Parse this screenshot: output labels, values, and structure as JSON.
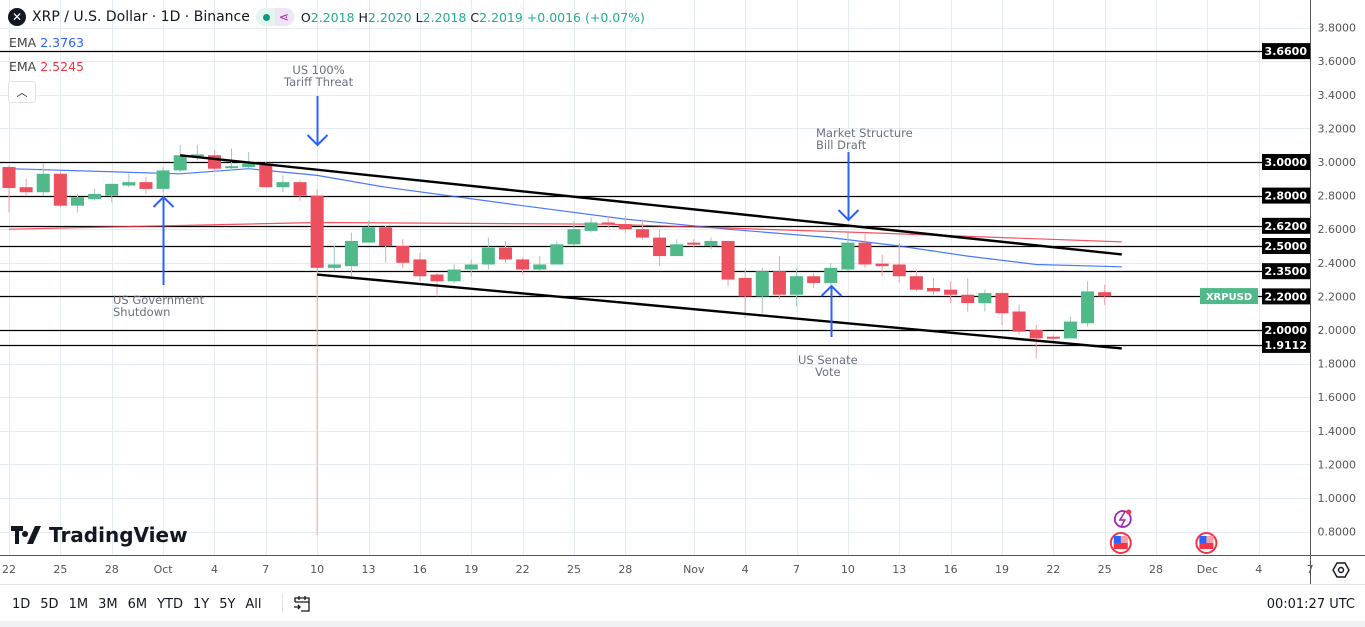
{
  "header": {
    "symbol_title": "XRP / U.S. Dollar · 1D · Binance",
    "symbol_icon": "xrp-logo-icon",
    "open_label": "O",
    "open": "2.2018",
    "high_label": "H",
    "high": "2.2020",
    "low_label": "L",
    "low": "2.2018",
    "close_label": "C",
    "close": "2.2019",
    "change": "+0.0016 (+0.07%)"
  },
  "indicators": [
    {
      "name": "EMA",
      "value": "2.3763",
      "color": "#2962ff"
    },
    {
      "name": "EMA",
      "value": "2.5245",
      "color": "#f23645"
    }
  ],
  "colors": {
    "up": "#4fb98a",
    "down": "#ec4f5e",
    "up_wick": "#9fc6c3",
    "down_wick": "#f5a0a8",
    "grid": "#e4ebf2",
    "arrow": "#2962ff",
    "last_price_bg": "#4fb98a"
  },
  "annotations": [
    {
      "id": "shutdown",
      "lines": [
        "US Government",
        "Shutdown"
      ],
      "arrow": "up",
      "date": "Oct 1"
    },
    {
      "id": "tariff",
      "lines": [
        "US 100%",
        "Tariff Threat"
      ],
      "arrow": "down",
      "date": "Oct 10"
    },
    {
      "id": "market-structure",
      "lines": [
        "Market Structure",
        "Bill Draft"
      ],
      "arrow": "down",
      "date": "Nov 10"
    },
    {
      "id": "senate",
      "lines": [
        "US Senate",
        "Vote"
      ],
      "arrow": "up",
      "date": "Nov 9"
    }
  ],
  "chart_data": {
    "type": "candlestick",
    "title": "XRP / U.S. Dollar · 1D · Binance",
    "ylim": [
      0.7,
      3.95
    ],
    "y_ticks": [
      "3.8000",
      "3.6000",
      "3.4000",
      "3.2000",
      "3.0000",
      "2.8000",
      "2.6000",
      "2.4000",
      "2.2000",
      "2.0000",
      "1.8000",
      "1.6000",
      "1.4000",
      "1.2000",
      "1.0000",
      "0.8000"
    ],
    "x_ticks": [
      {
        "label": "22",
        "date": "Sep 22"
      },
      {
        "label": "25",
        "date": "Sep 25"
      },
      {
        "label": "28",
        "date": "Sep 28"
      },
      {
        "label": "Oct",
        "date": "Oct 1"
      },
      {
        "label": "4",
        "date": "Oct 4"
      },
      {
        "label": "7",
        "date": "Oct 7"
      },
      {
        "label": "10",
        "date": "Oct 10"
      },
      {
        "label": "13",
        "date": "Oct 13"
      },
      {
        "label": "16",
        "date": "Oct 16"
      },
      {
        "label": "19",
        "date": "Oct 19"
      },
      {
        "label": "22",
        "date": "Oct 22"
      },
      {
        "label": "25",
        "date": "Oct 25"
      },
      {
        "label": "28",
        "date": "Oct 28"
      },
      {
        "label": "Nov",
        "date": "Nov 1"
      },
      {
        "label": "4",
        "date": "Nov 4"
      },
      {
        "label": "7",
        "date": "Nov 7"
      },
      {
        "label": "10",
        "date": "Nov 10"
      },
      {
        "label": "13",
        "date": "Nov 13"
      },
      {
        "label": "16",
        "date": "Nov 16"
      },
      {
        "label": "19",
        "date": "Nov 19"
      },
      {
        "label": "22",
        "date": "Nov 22"
      },
      {
        "label": "25",
        "date": "Nov 25"
      },
      {
        "label": "28",
        "date": "Nov 28"
      },
      {
        "label": "Dec",
        "date": "Dec 1"
      },
      {
        "label": "4",
        "date": "Dec 4"
      },
      {
        "label": "7",
        "date": "Dec 7"
      }
    ],
    "candles_columns": [
      "date",
      "open",
      "high",
      "low",
      "close"
    ],
    "candles": [
      [
        "Sep 22",
        2.97,
        2.98,
        2.7,
        2.845
      ],
      [
        "Sep 23",
        2.85,
        2.9,
        2.8,
        2.82
      ],
      [
        "Sep 24",
        2.82,
        2.99,
        2.8,
        2.93
      ],
      [
        "Sep 25",
        2.93,
        2.95,
        2.73,
        2.74
      ],
      [
        "Sep 26",
        2.74,
        2.81,
        2.7,
        2.79
      ],
      [
        "Sep 27",
        2.78,
        2.84,
        2.77,
        2.81
      ],
      [
        "Sep 28",
        2.8,
        2.87,
        2.76,
        2.87
      ],
      [
        "Sep 29",
        2.86,
        2.93,
        2.85,
        2.88
      ],
      [
        "Sep 30",
        2.88,
        2.91,
        2.81,
        2.84
      ],
      [
        "Oct 1",
        2.84,
        2.97,
        2.82,
        2.95
      ],
      [
        "Oct 2",
        2.95,
        3.1,
        2.94,
        3.04
      ],
      [
        "Oct 3",
        3.04,
        3.1,
        3.01,
        3.045
      ],
      [
        "Oct 4",
        3.04,
        3.07,
        2.94,
        2.96
      ],
      [
        "Oct 5",
        2.97,
        3.08,
        2.95,
        2.975
      ],
      [
        "Oct 6",
        2.97,
        3.06,
        2.96,
        2.99
      ],
      [
        "Oct 7",
        2.99,
        3.0,
        2.85,
        2.85
      ],
      [
        "Oct 8",
        2.85,
        2.92,
        2.82,
        2.88
      ],
      [
        "Oct 9",
        2.88,
        2.89,
        2.77,
        2.8
      ],
      [
        "Oct 10",
        2.8,
        2.84,
        0.78,
        2.37
      ],
      [
        "Oct 11",
        2.37,
        2.5,
        2.35,
        2.39
      ],
      [
        "Oct 12",
        2.38,
        2.58,
        2.32,
        2.53
      ],
      [
        "Oct 13",
        2.52,
        2.65,
        2.52,
        2.61
      ],
      [
        "Oct 14",
        2.61,
        2.62,
        2.4,
        2.5
      ],
      [
        "Oct 15",
        2.5,
        2.54,
        2.37,
        2.4
      ],
      [
        "Oct 16",
        2.42,
        2.46,
        2.29,
        2.32
      ],
      [
        "Oct 17",
        2.33,
        2.34,
        2.2,
        2.29
      ],
      [
        "Oct 18",
        2.29,
        2.39,
        2.28,
        2.36
      ],
      [
        "Oct 19",
        2.36,
        2.42,
        2.32,
        2.39
      ],
      [
        "Oct 20",
        2.39,
        2.55,
        2.36,
        2.49
      ],
      [
        "Oct 21",
        2.49,
        2.53,
        2.4,
        2.42
      ],
      [
        "Oct 22",
        2.42,
        2.43,
        2.33,
        2.36
      ],
      [
        "Oct 23",
        2.36,
        2.44,
        2.35,
        2.39
      ],
      [
        "Oct 24",
        2.39,
        2.53,
        2.39,
        2.51
      ],
      [
        "Oct 25",
        2.51,
        2.65,
        2.5,
        2.6
      ],
      [
        "Oct 26",
        2.59,
        2.67,
        2.58,
        2.64
      ],
      [
        "Oct 27",
        2.64,
        2.68,
        2.61,
        2.63
      ],
      [
        "Oct 28",
        2.63,
        2.68,
        2.58,
        2.6
      ],
      [
        "Oct 29",
        2.6,
        2.66,
        2.54,
        2.55
      ],
      [
        "Oct 30",
        2.55,
        2.6,
        2.38,
        2.44
      ],
      [
        "Oct 31",
        2.44,
        2.54,
        2.44,
        2.51
      ],
      [
        "Nov 1",
        2.52,
        2.54,
        2.49,
        2.51
      ],
      [
        "Nov 2",
        2.5,
        2.55,
        2.48,
        2.53
      ],
      [
        "Nov 3",
        2.53,
        2.53,
        2.26,
        2.3
      ],
      [
        "Nov 4",
        2.31,
        2.36,
        2.07,
        2.2
      ],
      [
        "Nov 5",
        2.2,
        2.37,
        2.1,
        2.35
      ],
      [
        "Nov 6",
        2.35,
        2.44,
        2.18,
        2.21
      ],
      [
        "Nov 7",
        2.21,
        2.37,
        2.14,
        2.32
      ],
      [
        "Nov 8",
        2.32,
        2.34,
        2.25,
        2.28
      ],
      [
        "Nov 9",
        2.28,
        2.4,
        2.27,
        2.37
      ],
      [
        "Nov 10",
        2.36,
        2.58,
        2.35,
        2.52
      ],
      [
        "Nov 11",
        2.52,
        2.57,
        2.37,
        2.39
      ],
      [
        "Nov 12",
        2.395,
        2.45,
        2.32,
        2.38
      ],
      [
        "Nov 13",
        2.39,
        2.52,
        2.28,
        2.32
      ],
      [
        "Nov 14",
        2.32,
        2.36,
        2.23,
        2.24
      ],
      [
        "Nov 15",
        2.25,
        2.31,
        2.21,
        2.23
      ],
      [
        "Nov 16",
        2.24,
        2.29,
        2.16,
        2.21
      ],
      [
        "Nov 17",
        2.21,
        2.31,
        2.11,
        2.16
      ],
      [
        "Nov 18",
        2.16,
        2.24,
        2.11,
        2.22
      ],
      [
        "Nov 19",
        2.22,
        2.23,
        2.03,
        2.1
      ],
      [
        "Nov 20",
        2.11,
        2.15,
        1.97,
        1.99
      ],
      [
        "Nov 21",
        2.0,
        2.03,
        1.83,
        1.95
      ],
      [
        "Nov 22",
        1.96,
        1.97,
        1.92,
        1.95
      ],
      [
        "Nov 23",
        1.95,
        2.08,
        1.95,
        2.05
      ],
      [
        "Nov 24",
        2.04,
        2.29,
        2.02,
        2.23
      ],
      [
        "Nov 25",
        2.225,
        2.27,
        2.15,
        2.2
      ]
    ],
    "ema_series": [
      {
        "name": "EMA",
        "color": "#2962ff",
        "points": [
          [
            "Sep 22",
            2.96
          ],
          [
            "Oct 2",
            2.93
          ],
          [
            "Oct 6",
            2.96
          ],
          [
            "Oct 10",
            2.92
          ],
          [
            "Oct 14",
            2.85
          ],
          [
            "Oct 22",
            2.74
          ],
          [
            "Oct 28",
            2.66
          ],
          [
            "Nov 3",
            2.6
          ],
          [
            "Nov 9",
            2.55
          ],
          [
            "Nov 13",
            2.5
          ],
          [
            "Nov 17",
            2.44
          ],
          [
            "Nov 21",
            2.39
          ],
          [
            "Nov 26",
            2.3763
          ]
        ]
      },
      {
        "name": "EMA",
        "color": "#f23645",
        "points": [
          [
            "Sep 22",
            2.6
          ],
          [
            "Oct 10",
            2.64
          ],
          [
            "Oct 27",
            2.63
          ],
          [
            "Nov 11",
            2.58
          ],
          [
            "Nov 26",
            2.5245
          ]
        ]
      }
    ],
    "horizontal_levels": [
      "3.6600",
      "3.0000",
      "2.8000",
      "2.6200",
      "2.5000",
      "2.3500",
      "2.2000",
      "2.0000",
      "1.9112"
    ],
    "trend_lines": [
      {
        "from": [
          "Oct 2",
          3.04
        ],
        "to": [
          "Nov 26",
          2.45
        ]
      },
      {
        "from": [
          "Oct 10",
          2.33
        ],
        "to": [
          "Nov 26",
          1.89
        ]
      }
    ],
    "last_price_label": "XRPUSD",
    "last_price": 2.2019,
    "events": [
      {
        "icon": "lightning-news-icon",
        "date": "Nov 26"
      },
      {
        "icon": "us-flag-event-icon",
        "date": "Nov 26"
      },
      {
        "icon": "us-flag-event-icon",
        "date": "Dec 1"
      }
    ]
  },
  "branding": {
    "logo_text": "TradingView"
  },
  "toolbar": {
    "timeframes": [
      "1D",
      "5D",
      "1M",
      "3M",
      "6M",
      "YTD",
      "1Y",
      "5Y",
      "All"
    ],
    "clock": "00:01:27 UTC"
  }
}
